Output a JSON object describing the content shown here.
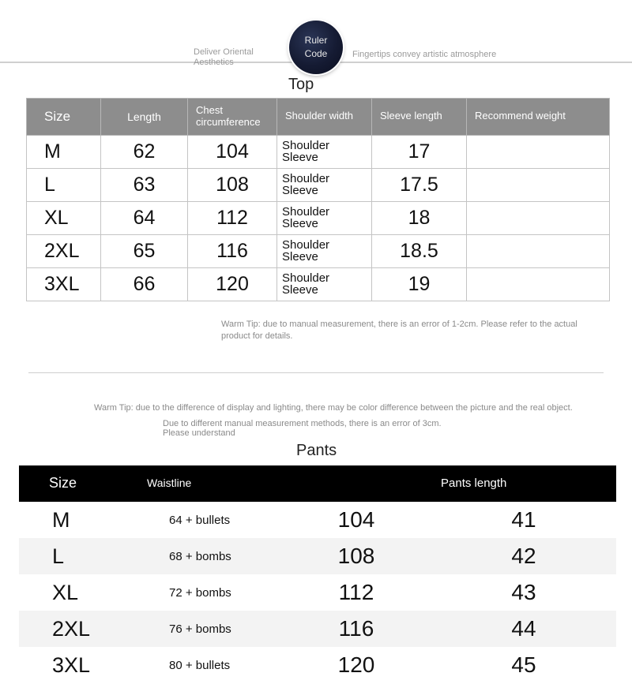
{
  "header": {
    "left_text": "Deliver Oriental Aesthetics",
    "right_text": "Fingertips convey artistic atmosphere",
    "badge_line1": "Ruler",
    "badge_line2": "Code"
  },
  "top_section": {
    "title": "Top",
    "columns": {
      "size": "Size",
      "length": "Length",
      "chest": "Chest circumference",
      "shoulder": "Shoulder width",
      "sleeve": "Sleeve length",
      "recommend": "Recommend weight"
    },
    "rows": [
      {
        "size": "M",
        "length": "62",
        "chest": "104",
        "shoulder": "Shoulder Sleeve",
        "sleeve": "17",
        "recommend": ""
      },
      {
        "size": "L",
        "length": "63",
        "chest": "108",
        "shoulder": "Shoulder Sleeve",
        "sleeve": "17.5",
        "recommend": ""
      },
      {
        "size": "XL",
        "length": "64",
        "chest": "112",
        "shoulder": "Shoulder Sleeve",
        "sleeve": "18",
        "recommend": ""
      },
      {
        "size": "2XL",
        "length": "65",
        "chest": "116",
        "shoulder": "Shoulder Sleeve",
        "sleeve": "18.5",
        "recommend": ""
      },
      {
        "size": "3XL",
        "length": "66",
        "chest": "120",
        "shoulder": "Shoulder Sleeve",
        "sleeve": "19",
        "recommend": ""
      }
    ],
    "warm_tip": "Warm Tip: due to manual measurement, there is an error of 1-2cm. Please refer to the actual product for details."
  },
  "middle_tips": {
    "line1": "Warm Tip: due to the difference of display and lighting, there may be color difference between the picture and the real object.",
    "line2": "Due to different manual measurement methods, there is an error of 3cm.",
    "line3": "Please understand"
  },
  "pants_section": {
    "title": "Pants",
    "columns": {
      "size": "Size",
      "waistline": "Waistline",
      "col3": "",
      "pants_length": "Pants length"
    },
    "rows": [
      {
        "size": "M",
        "waistline": "64 + bullets",
        "v3": "104",
        "plen": "41"
      },
      {
        "size": "L",
        "waistline": "68 + bombs",
        "v3": "108",
        "plen": "42"
      },
      {
        "size": "XL",
        "waistline": "72 + bombs",
        "v3": "112",
        "plen": "43"
      },
      {
        "size": "2XL",
        "waistline": "76 + bombs",
        "v3": "116",
        "plen": "44"
      },
      {
        "size": "3XL",
        "waistline": "80 + bullets",
        "v3": "120",
        "plen": "45"
      }
    ]
  },
  "colors": {
    "top_header_bg": "#8d8d8d",
    "pants_header_bg": "#000000",
    "border": "#c4c4c4",
    "tip_text": "#8a8a8a"
  }
}
